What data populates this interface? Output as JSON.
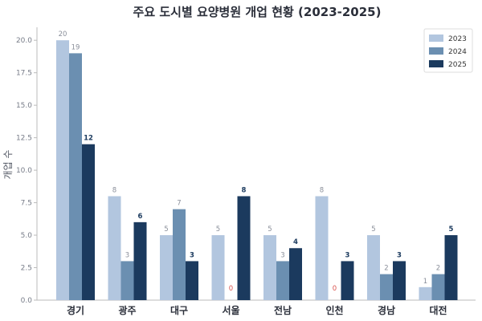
{
  "chart_data": {
    "type": "bar",
    "title": "주요 도시별 요양병원 개업 현황 (2023-2025)",
    "xlabel": "",
    "ylabel": "개업 수",
    "ylim": [
      0,
      21
    ],
    "yticks": [
      "0.0",
      "2.5",
      "5.0",
      "7.5",
      "10.0",
      "12.5",
      "15.0",
      "17.5",
      "20.0"
    ],
    "categories": [
      "경기",
      "광주",
      "대구",
      "서울",
      "전남",
      "인천",
      "경남",
      "대전"
    ],
    "series": [
      {
        "name": "2023",
        "color": "#b2c6df",
        "values": [
          20,
          8,
          5,
          5,
          5,
          8,
          5,
          1
        ]
      },
      {
        "name": "2024",
        "color": "#6b8fb1",
        "values": [
          19,
          3,
          7,
          0,
          3,
          0,
          2,
          2
        ]
      },
      {
        "name": "2025",
        "color": "#1b3a5e",
        "values": [
          12,
          6,
          3,
          8,
          4,
          3,
          3,
          5
        ]
      }
    ],
    "zero_label_color": "#d9534f",
    "legend_position": "top-right",
    "grid": false
  }
}
